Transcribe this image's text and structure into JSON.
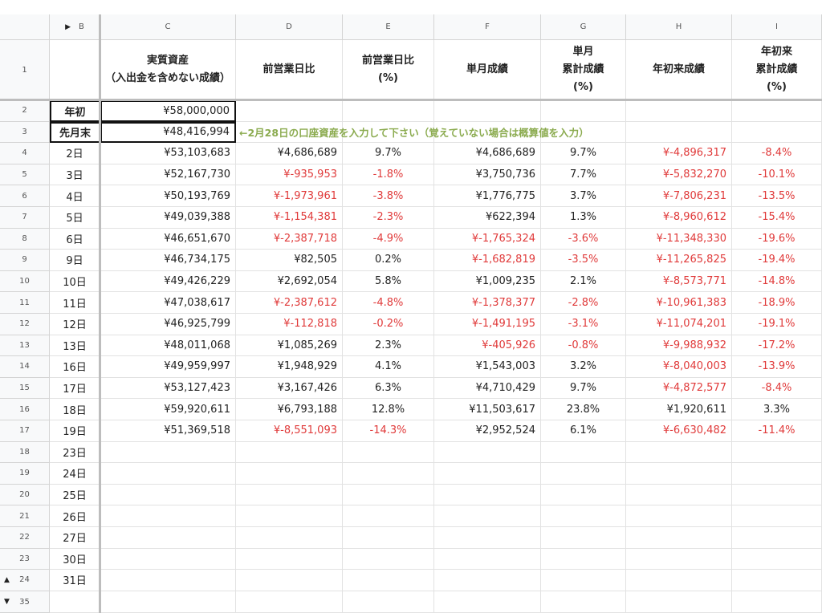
{
  "columns": [
    "B",
    "C",
    "D",
    "E",
    "F",
    "G",
    "H",
    "I"
  ],
  "header": [
    [
      "実質資産",
      "（入出金を含めない成績）"
    ],
    [
      "前営業日比"
    ],
    [
      "前営業日比",
      "(%)"
    ],
    [
      "単月成績"
    ],
    [
      "単月",
      "累計成績",
      "(%)"
    ],
    [
      "年初来成績"
    ],
    [
      "年初来",
      "累計成績",
      "(%)"
    ]
  ],
  "header_row": 1,
  "note": "←2月28日の口座資産を入力して下さい（覚えていない場合は概算値を入力）",
  "rows": [
    {
      "num": 2,
      "label": "年初",
      "cells": [
        "¥58,000,000"
      ]
    },
    {
      "num": 3,
      "label": "先月末",
      "cells": [
        "¥48,416,994"
      ]
    },
    {
      "num": 4,
      "label": "2日",
      "cells": [
        "¥53,103,683",
        "¥4,686,689",
        "9.7%",
        "¥4,686,689",
        "9.7%",
        "¥-4,896,317",
        "-8.4%"
      ]
    },
    {
      "num": 5,
      "label": "3日",
      "cells": [
        "¥52,167,730",
        "¥-935,953",
        "-1.8%",
        "¥3,750,736",
        "7.7%",
        "¥-5,832,270",
        "-10.1%"
      ]
    },
    {
      "num": 6,
      "label": "4日",
      "cells": [
        "¥50,193,769",
        "¥-1,973,961",
        "-3.8%",
        "¥1,776,775",
        "3.7%",
        "¥-7,806,231",
        "-13.5%"
      ]
    },
    {
      "num": 7,
      "label": "5日",
      "cells": [
        "¥49,039,388",
        "¥-1,154,381",
        "-2.3%",
        "¥622,394",
        "1.3%",
        "¥-8,960,612",
        "-15.4%"
      ]
    },
    {
      "num": 8,
      "label": "6日",
      "cells": [
        "¥46,651,670",
        "¥-2,387,718",
        "-4.9%",
        "¥-1,765,324",
        "-3.6%",
        "¥-11,348,330",
        "-19.6%"
      ]
    },
    {
      "num": 9,
      "label": "9日",
      "cells": [
        "¥46,734,175",
        "¥82,505",
        "0.2%",
        "¥-1,682,819",
        "-3.5%",
        "¥-11,265,825",
        "-19.4%"
      ]
    },
    {
      "num": 10,
      "label": "10日",
      "cells": [
        "¥49,426,229",
        "¥2,692,054",
        "5.8%",
        "¥1,009,235",
        "2.1%",
        "¥-8,573,771",
        "-14.8%"
      ]
    },
    {
      "num": 11,
      "label": "11日",
      "cells": [
        "¥47,038,617",
        "¥-2,387,612",
        "-4.8%",
        "¥-1,378,377",
        "-2.8%",
        "¥-10,961,383",
        "-18.9%"
      ]
    },
    {
      "num": 12,
      "label": "12日",
      "cells": [
        "¥46,925,799",
        "¥-112,818",
        "-0.2%",
        "¥-1,491,195",
        "-3.1%",
        "¥-11,074,201",
        "-19.1%"
      ]
    },
    {
      "num": 13,
      "label": "13日",
      "cells": [
        "¥48,011,068",
        "¥1,085,269",
        "2.3%",
        "¥-405,926",
        "-0.8%",
        "¥-9,988,932",
        "-17.2%"
      ]
    },
    {
      "num": 14,
      "label": "16日",
      "cells": [
        "¥49,959,997",
        "¥1,948,929",
        "4.1%",
        "¥1,543,003",
        "3.2%",
        "¥-8,040,003",
        "-13.9%"
      ]
    },
    {
      "num": 15,
      "label": "17日",
      "cells": [
        "¥53,127,423",
        "¥3,167,426",
        "6.3%",
        "¥4,710,429",
        "9.7%",
        "¥-4,872,577",
        "-8.4%"
      ]
    },
    {
      "num": 16,
      "label": "18日",
      "cells": [
        "¥59,920,611",
        "¥6,793,188",
        "12.8%",
        "¥11,503,617",
        "23.8%",
        "¥1,920,611",
        "3.3%"
      ]
    },
    {
      "num": 17,
      "label": "19日",
      "cells": [
        "¥51,369,518",
        "¥-8,551,093",
        "-14.3%",
        "¥2,952,524",
        "6.1%",
        "¥-6,630,482",
        "-11.4%"
      ]
    },
    {
      "num": 18,
      "label": "23日"
    },
    {
      "num": 19,
      "label": "24日"
    },
    {
      "num": 20,
      "label": "25日"
    },
    {
      "num": 21,
      "label": "26日"
    },
    {
      "num": 22,
      "label": "27日"
    },
    {
      "num": 23,
      "label": "30日"
    },
    {
      "num": 24,
      "label": "31日"
    },
    {
      "num": 35
    }
  ]
}
